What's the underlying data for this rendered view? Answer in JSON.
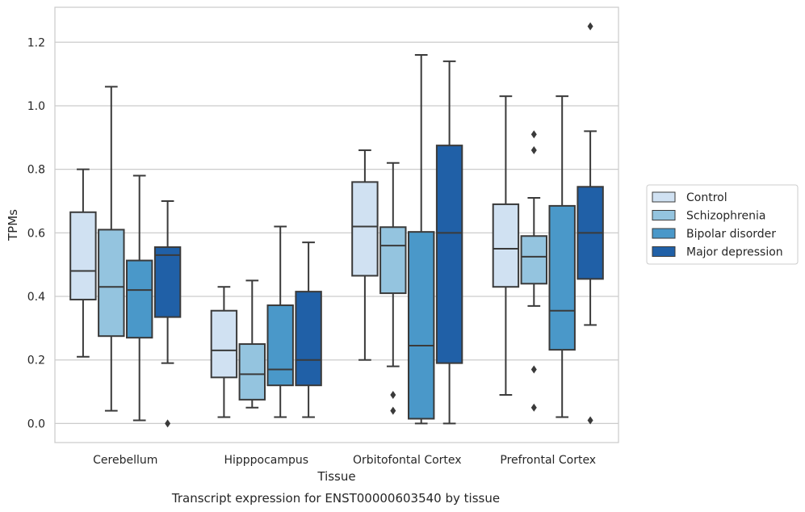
{
  "chart_data": {
    "type": "box",
    "caption": "Transcript expression for ENST00000603540 by tissue",
    "xlabel": "Tissue",
    "ylabel": "TPMs",
    "ylim": [
      -0.06,
      1.31
    ],
    "yticks": [
      0.0,
      0.2,
      0.4,
      0.6,
      0.8,
      1.0,
      1.2
    ],
    "ytick_labels": [
      "0.0",
      "0.2",
      "0.4",
      "0.6",
      "0.8",
      "1.0",
      "1.2"
    ],
    "grid": "horizontal",
    "legend_position": "right",
    "categories": [
      "Cerebellum",
      "Hipppocampus",
      "Orbitofontal Cortex",
      "Prefrontal Cortex"
    ],
    "series": [
      {
        "name": "Control",
        "color": "#d0e1f2",
        "boxes": [
          {
            "whislo": 0.21,
            "q1": 0.39,
            "med": 0.48,
            "q3": 0.665,
            "whishi": 0.8,
            "fliers": []
          },
          {
            "whislo": 0.02,
            "q1": 0.145,
            "med": 0.23,
            "q3": 0.355,
            "whishi": 0.43,
            "fliers": []
          },
          {
            "whislo": 0.2,
            "q1": 0.465,
            "med": 0.62,
            "q3": 0.76,
            "whishi": 0.86,
            "fliers": []
          },
          {
            "whislo": 0.09,
            "q1": 0.43,
            "med": 0.55,
            "q3": 0.69,
            "whishi": 1.03,
            "fliers": []
          }
        ]
      },
      {
        "name": "Schizophrenia",
        "color": "#94c4df",
        "boxes": [
          {
            "whislo": 0.04,
            "q1": 0.275,
            "med": 0.43,
            "q3": 0.61,
            "whishi": 1.06,
            "fliers": []
          },
          {
            "whislo": 0.05,
            "q1": 0.075,
            "med": 0.155,
            "q3": 0.25,
            "whishi": 0.45,
            "fliers": []
          },
          {
            "whislo": 0.18,
            "q1": 0.41,
            "med": 0.56,
            "q3": 0.618,
            "whishi": 0.82,
            "fliers": [
              0.09,
              0.04
            ]
          },
          {
            "whislo": 0.37,
            "q1": 0.44,
            "med": 0.525,
            "q3": 0.59,
            "whishi": 0.71,
            "fliers": [
              0.91,
              0.86,
              0.17,
              0.05
            ]
          }
        ]
      },
      {
        "name": "Bipolar disorder",
        "color": "#4a98c9",
        "boxes": [
          {
            "whislo": 0.01,
            "q1": 0.27,
            "med": 0.42,
            "q3": 0.513,
            "whishi": 0.78,
            "fliers": []
          },
          {
            "whislo": 0.02,
            "q1": 0.12,
            "med": 0.17,
            "q3": 0.372,
            "whishi": 0.62,
            "fliers": []
          },
          {
            "whislo": 0.0,
            "q1": 0.015,
            "med": 0.245,
            "q3": 0.603,
            "whishi": 1.16,
            "fliers": []
          },
          {
            "whislo": 0.02,
            "q1": 0.232,
            "med": 0.355,
            "q3": 0.685,
            "whishi": 1.03,
            "fliers": []
          }
        ]
      },
      {
        "name": "Major depression",
        "color": "#2060a7",
        "boxes": [
          {
            "whislo": 0.19,
            "q1": 0.335,
            "med": 0.53,
            "q3": 0.555,
            "whishi": 0.7,
            "fliers": [
              0.0
            ]
          },
          {
            "whislo": 0.02,
            "q1": 0.12,
            "med": 0.2,
            "q3": 0.415,
            "whishi": 0.57,
            "fliers": []
          },
          {
            "whislo": 0.0,
            "q1": 0.19,
            "med": 0.6,
            "q3": 0.875,
            "whishi": 1.14,
            "fliers": []
          },
          {
            "whislo": 0.31,
            "q1": 0.455,
            "med": 0.6,
            "q3": 0.745,
            "whishi": 0.92,
            "fliers": [
              1.25,
              0.01
            ]
          }
        ]
      }
    ]
  }
}
